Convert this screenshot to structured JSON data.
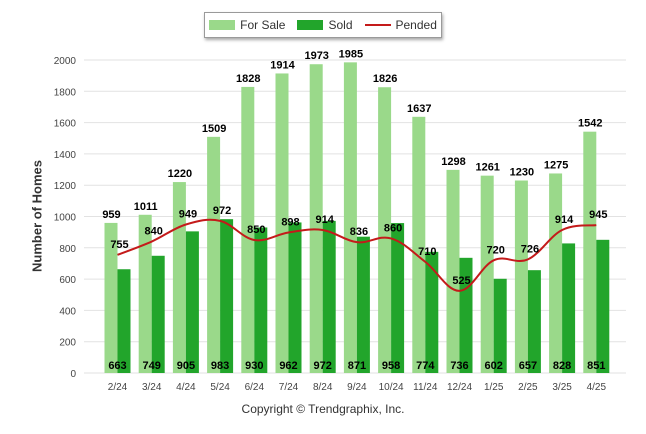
{
  "chart_data": {
    "type": "bar",
    "categories": [
      "2/24",
      "3/24",
      "4/24",
      "5/24",
      "6/24",
      "7/24",
      "8/24",
      "9/24",
      "10/24",
      "11/24",
      "12/24",
      "1/25",
      "2/25",
      "3/25",
      "4/25"
    ],
    "series": [
      {
        "name": "For Sale",
        "type": "bar",
        "color": "#9ad98a",
        "values": [
          959,
          1011,
          1220,
          1509,
          1828,
          1914,
          1973,
          1985,
          1826,
          1637,
          1298,
          1261,
          1230,
          1275,
          1542
        ]
      },
      {
        "name": "Sold",
        "type": "bar",
        "color": "#22a52b",
        "values": [
          663,
          749,
          905,
          983,
          930,
          962,
          972,
          871,
          958,
          774,
          736,
          602,
          657,
          828,
          851
        ]
      },
      {
        "name": "Pended",
        "type": "line",
        "color": "#c41a1a",
        "values": [
          755,
          840,
          949,
          972,
          850,
          898,
          914,
          836,
          860,
          710,
          525,
          720,
          726,
          914,
          945
        ]
      }
    ],
    "ylabel": "Number of Homes",
    "ylim": [
      0,
      2000
    ],
    "yticks": [
      0,
      200,
      400,
      600,
      800,
      1000,
      1200,
      1400,
      1600,
      1800,
      2000
    ],
    "grid": true,
    "legend_position": "top-center"
  },
  "legend": {
    "for_sale": "For Sale",
    "sold": "Sold",
    "pended": "Pended"
  },
  "footer": {
    "copyright": "Copyright © Trendgraphix, Inc."
  }
}
